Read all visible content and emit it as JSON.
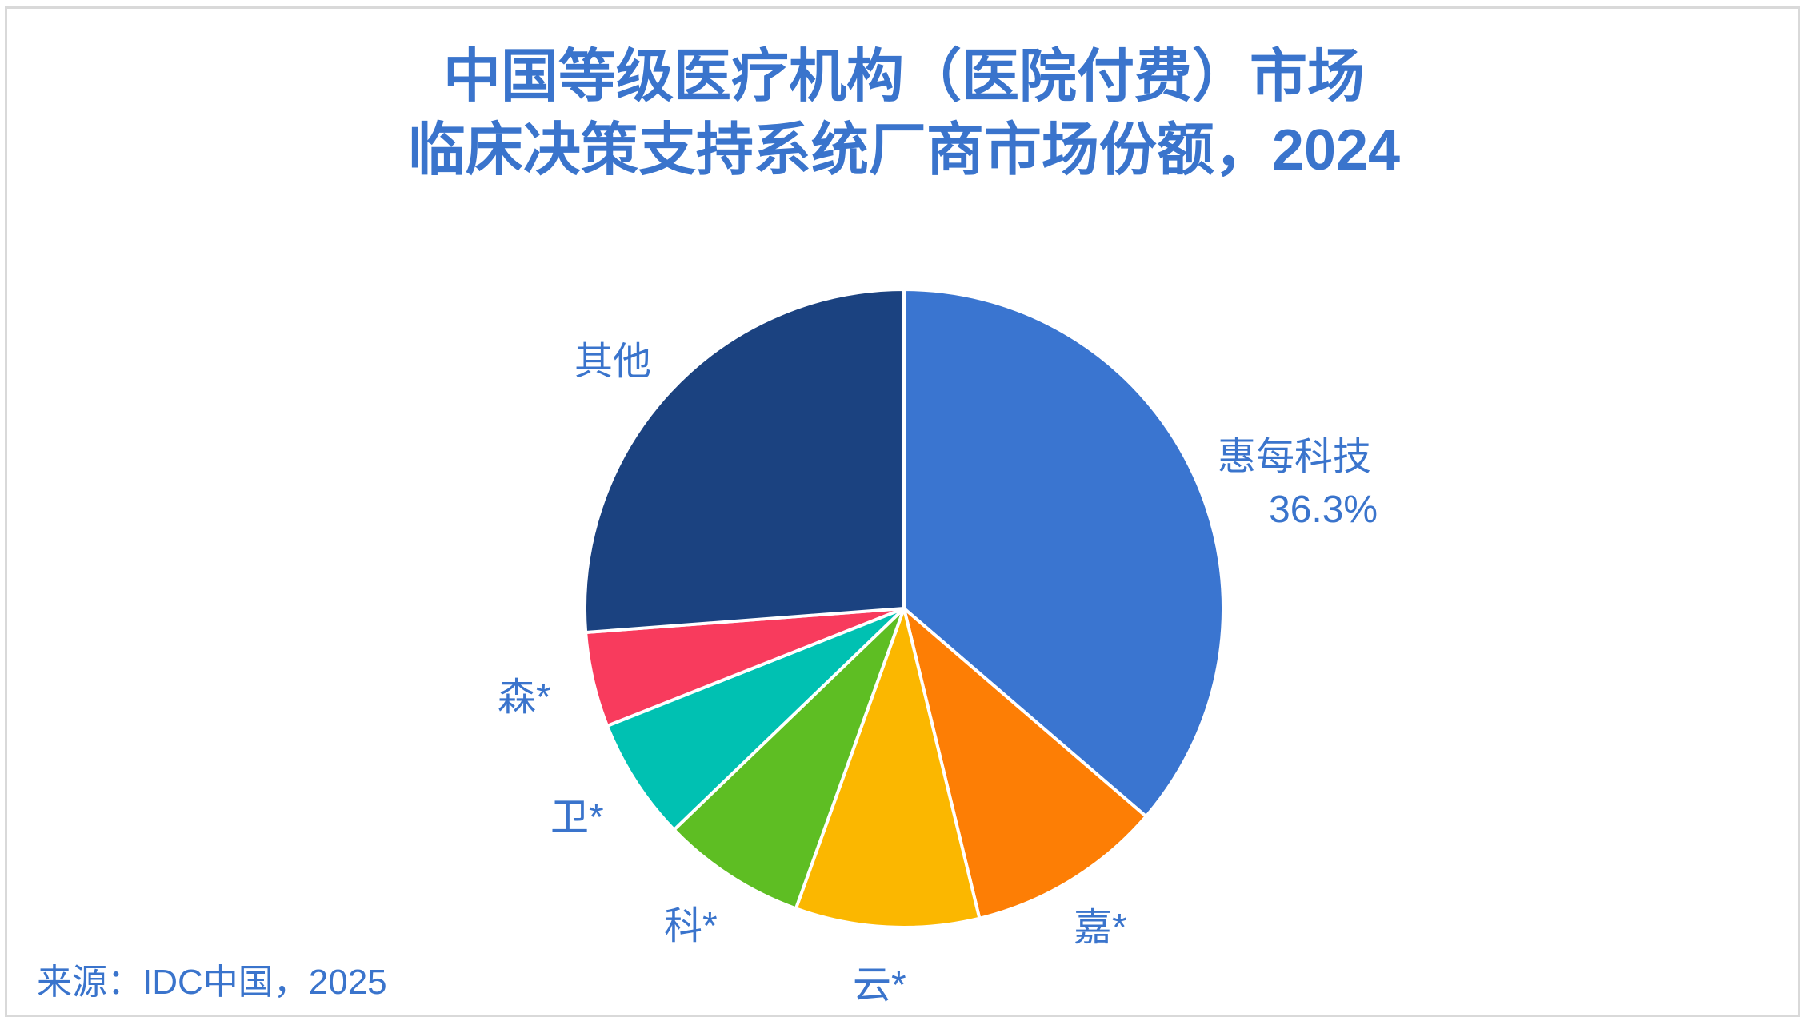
{
  "title": {
    "line1": "中国等级医疗机构（医院付费）市场",
    "line2": "临床决策支持系统厂商市场份额，2024"
  },
  "source": "来源：IDC中国，2025",
  "chart_data": {
    "type": "pie",
    "title": "中国等级医疗机构（医院付费）市场 临床决策支持系统厂商市场份额，2024",
    "start_angle_deg": 0,
    "direction": "clockwise",
    "slices": [
      {
        "label": "惠每科技",
        "value": 36.3,
        "value_label": "36.3%",
        "color": "#3a75d0"
      },
      {
        "label": "嘉*",
        "value": 9.9,
        "value_label": "",
        "color": "#fd7e05"
      },
      {
        "label": "云*",
        "value": 9.3,
        "value_label": "",
        "color": "#fbb700"
      },
      {
        "label": "科*",
        "value": 7.3,
        "value_label": "",
        "color": "#5ebe23"
      },
      {
        "label": "卫*",
        "value": 6.2,
        "value_label": "",
        "color": "#00c1b2"
      },
      {
        "label": "森*",
        "value": 4.8,
        "value_label": "",
        "color": "#f83b5d"
      },
      {
        "label": "其他",
        "value": 26.2,
        "value_label": "",
        "color": "#1b4280"
      }
    ],
    "source": "来源：IDC中国，2025"
  }
}
